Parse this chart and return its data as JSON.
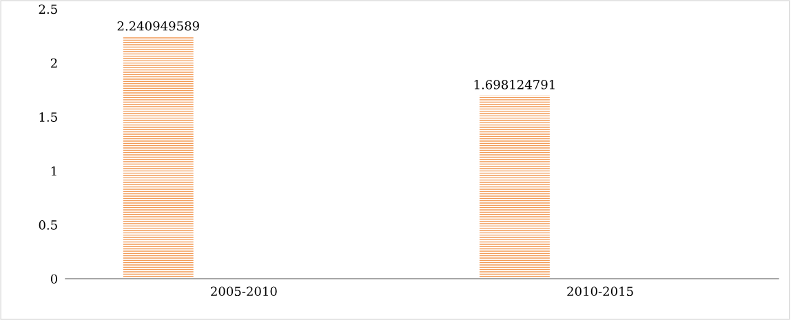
{
  "chart_data": {
    "type": "bar",
    "categories": [
      "2005-2010",
      "2010-2015"
    ],
    "values": [
      2.240949589,
      1.698124791
    ],
    "color": "#f29a55",
    "ylim": [
      0,
      2.5
    ],
    "yticks": [
      0,
      0.5,
      1,
      1.5,
      2,
      2.5
    ],
    "data_labels": true,
    "grid": false
  }
}
